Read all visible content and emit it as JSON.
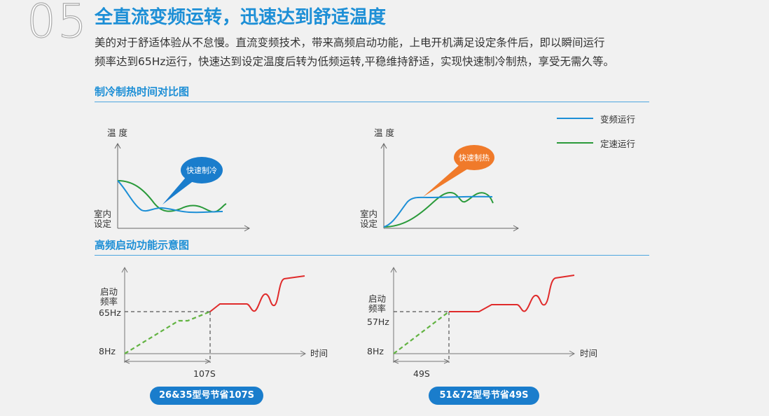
{
  "header": {
    "number": "05",
    "title": "全直流变频运转，迅速达到舒适温度",
    "description_line1": "美的对于舒适体验从不怠慢。直流变频技术，带来高频启动功能，上电开机满足设定条件后，即以瞬间运行",
    "description_line2": "频率达到65Hz运行，快速达到设定温度后转为低频运转,平稳维持舒适，实现快速制冷制热，享受无需久等。"
  },
  "section1": {
    "title": "制冷制热时间对比图",
    "legend": [
      {
        "label": "变频运行",
        "color": "#1d8fd6"
      },
      {
        "label": "定速运行",
        "color": "#2a9a3a"
      }
    ],
    "chart_cool": {
      "ylabel": "温 度",
      "ybase_line1": "室内",
      "ybase_line2": "设定",
      "bubble": "快速制冷",
      "bubble_color": "#1a7dcc"
    },
    "chart_heat": {
      "ylabel": "温 度",
      "ybase_line1": "室内",
      "ybase_line2": "设定",
      "bubble": "快速制热",
      "bubble_color": "#f07a2a"
    }
  },
  "section2": {
    "title": "高频启动功能示意图",
    "chart_left": {
      "ylabel_line1": "启动",
      "ylabel_line2": "频率",
      "y_high": "65Hz",
      "y_low": "8Hz",
      "xlabel": "时间",
      "x_mark": "107S",
      "badge": "26&35型号节省107S"
    },
    "chart_right": {
      "ylabel_line1": "启动",
      "ylabel_line2": "频率",
      "y_high": "57Hz",
      "y_low": "8Hz",
      "xlabel": "时间",
      "x_mark": "49S",
      "badge": "51&72型号节省49S"
    },
    "colors": {
      "startup": "#62b342",
      "run": "#e02b2b"
    }
  }
}
